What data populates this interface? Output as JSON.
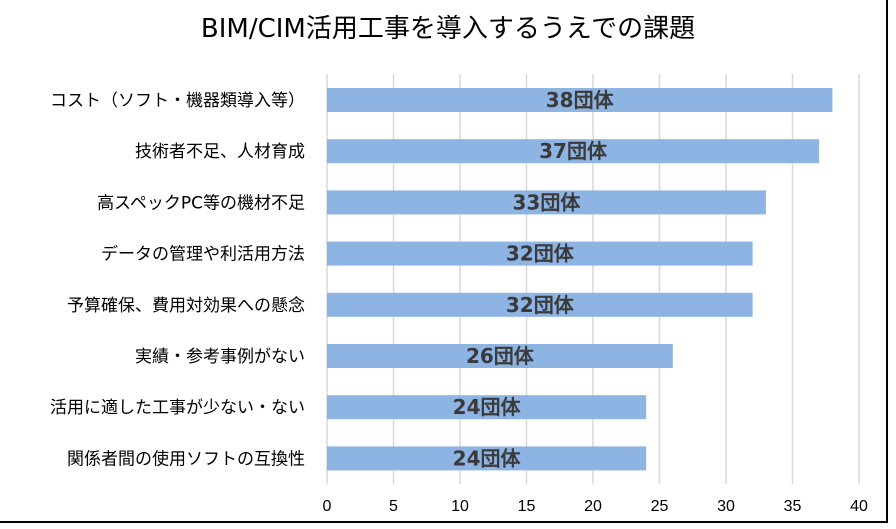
{
  "chart_data": {
    "type": "bar",
    "orientation": "horizontal",
    "title": "BIM/CIM活用工事を導入するうえでの課題",
    "categories": [
      "コスト（ソフト・機器類導入等）",
      "技術者不足、人材育成",
      "高スペックPC等の機材不足",
      "データの管理や利活用方法",
      "予算確保、費用対効果への懸念",
      "実績・参考事例がない",
      "活用に適した工事が少ない・ない",
      "関係者間の使用ソフトの互換性"
    ],
    "values": [
      38,
      37,
      33,
      32,
      32,
      26,
      24,
      24
    ],
    "data_labels": [
      "38団体",
      "37団体",
      "33団体",
      "32団体",
      "32団体",
      "26団体",
      "24団体",
      "24団体"
    ],
    "xlim": [
      0,
      40
    ],
    "x_ticks": [
      "0",
      "5",
      "10",
      "15",
      "20",
      "25",
      "30",
      "35",
      "40"
    ],
    "xlabel": "",
    "ylabel": "",
    "grid": "vertical",
    "legend": "none",
    "colors": {
      "bar": "#8eb4e3",
      "grid": "#d9d9d9",
      "label": "#3a3a3a"
    }
  }
}
